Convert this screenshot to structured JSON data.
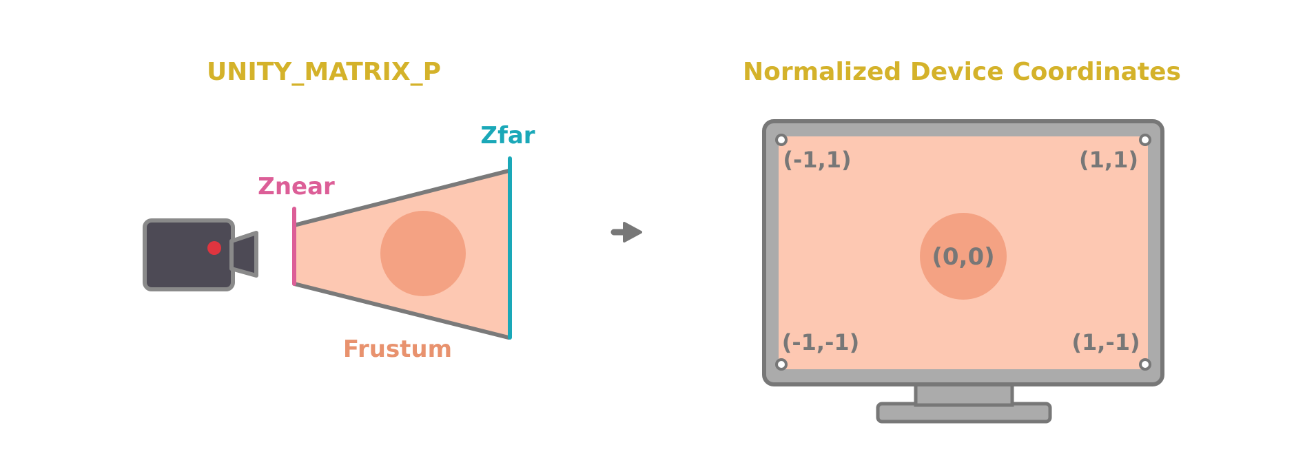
{
  "left_panel": {
    "title": "UNITY_MATRIX_P",
    "znear_label": "Znear",
    "zfar_label": "Zfar",
    "frustum_label": "Frustum"
  },
  "right_panel": {
    "title": "Normalized Device Coordinates",
    "corners": {
      "top_left": "(-1,1)",
      "top_right": "(1,1)",
      "bottom_left": "(-1,-1)",
      "bottom_right": "(1,-1)",
      "center": "(0,0)"
    }
  },
  "colors": {
    "title": "#d4b22a",
    "znear": "#dc5e97",
    "zfar": "#1aa8b8",
    "frustum_label": "#e8926e",
    "frustum_fill": "#fdc8b2",
    "frustum_edge": "#7a7a7a",
    "object_circle": "#f4a283",
    "camera_body": "#4d4a55",
    "camera_lens_dot": "#e0353f",
    "monitor_frame": "#ababab",
    "monitor_outline": "#777777"
  },
  "icons": {
    "camera": "video-camera-icon",
    "arrow": "arrow-right-icon",
    "monitor": "monitor-icon"
  }
}
